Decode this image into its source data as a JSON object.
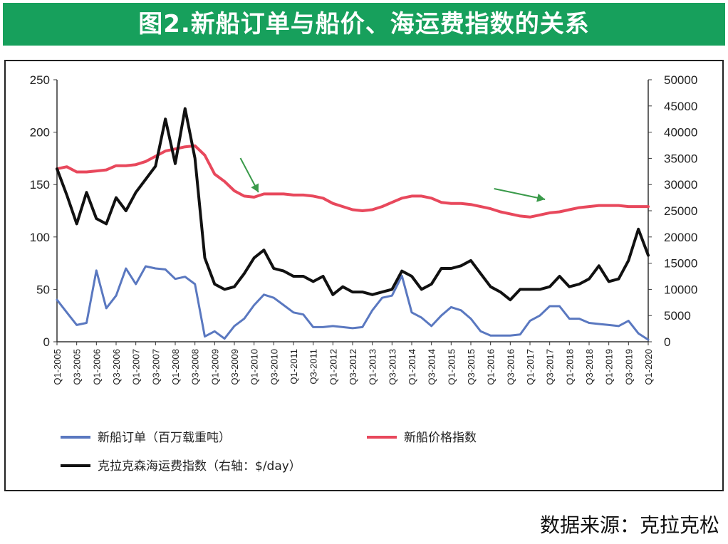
{
  "title": "图2.新船订单与船价、海运费指数的关系",
  "source": "数据来源：克拉克松",
  "chart_data": {
    "type": "line",
    "categories": [
      "Q1-2005",
      "Q2-2005",
      "Q3-2005",
      "Q4-2005",
      "Q1-2006",
      "Q2-2006",
      "Q3-2006",
      "Q4-2006",
      "Q1-2007",
      "Q2-2007",
      "Q3-2007",
      "Q4-2007",
      "Q1-2008",
      "Q2-2008",
      "Q3-2008",
      "Q4-2008",
      "Q1-2009",
      "Q2-2009",
      "Q3-2009",
      "Q4-2009",
      "Q1-2010",
      "Q2-2010",
      "Q3-2010",
      "Q4-2010",
      "Q1-2011",
      "Q2-2011",
      "Q3-2011",
      "Q4-2011",
      "Q1-2012",
      "Q2-2012",
      "Q3-2012",
      "Q4-2012",
      "Q1-2013",
      "Q2-2013",
      "Q3-2013",
      "Q4-2013",
      "Q1-2014",
      "Q2-2014",
      "Q3-2014",
      "Q4-2014",
      "Q1-2015",
      "Q2-2015",
      "Q3-2015",
      "Q4-2015",
      "Q1-2016",
      "Q2-2016",
      "Q3-2016",
      "Q4-2016",
      "Q1-2017",
      "Q2-2017",
      "Q3-2017",
      "Q4-2017",
      "Q1-2018",
      "Q2-2018",
      "Q3-2018",
      "Q4-2018",
      "Q1-2019",
      "Q2-2019",
      "Q3-2019",
      "Q4-2019",
      "Q1-2020"
    ],
    "tick_labels": [
      "Q1-2005",
      "Q3-2005",
      "Q1-2006",
      "Q3-2006",
      "Q1-2007",
      "Q3-2007",
      "Q1-2008",
      "Q3-2008",
      "Q1-2009",
      "Q3-2009",
      "Q1-2010",
      "Q3-2010",
      "Q1-2011",
      "Q3-2011",
      "Q1-2012",
      "Q3-2012",
      "Q1-2013",
      "Q3-2013",
      "Q1-2014",
      "Q3-2014",
      "Q1-2015",
      "Q3-2015",
      "Q1-2016",
      "Q3-2016",
      "Q1-2017",
      "Q3-2017",
      "Q1-2018",
      "Q3-2018",
      "Q1-2019",
      "Q3-2019",
      "Q1-2020"
    ],
    "y_left": {
      "range": [
        0,
        250
      ],
      "ticks": [
        "0",
        "50",
        "100",
        "150",
        "200",
        "250"
      ]
    },
    "y_right": {
      "range": [
        0,
        50000
      ],
      "ticks": [
        "0",
        "5000",
        "10000",
        "15000",
        "20000",
        "25000",
        "30000",
        "35000",
        "40000",
        "45000",
        "50000"
      ]
    },
    "series": [
      {
        "name": "新船订单（百万载重吨）",
        "axis": "left",
        "color": "#5a78c0",
        "values": [
          40,
          28,
          16,
          18,
          68,
          32,
          44,
          70,
          55,
          72,
          70,
          69,
          60,
          62,
          55,
          5,
          10,
          3,
          15,
          22,
          35,
          45,
          42,
          35,
          28,
          26,
          14,
          14,
          15,
          14,
          13,
          14,
          30,
          42,
          44,
          63,
          28,
          23,
          15,
          25,
          33,
          30,
          22,
          10,
          6,
          6,
          6,
          7,
          20,
          25,
          34,
          34,
          22,
          22,
          18,
          17,
          16,
          15,
          20,
          8,
          2
        ],
        "note": "values"
      },
      {
        "name": "新船价格指数",
        "axis": "left",
        "color": "#e8485c",
        "values": [
          165,
          167,
          162,
          162,
          163,
          164,
          168,
          168,
          169,
          172,
          177,
          182,
          184,
          186,
          187,
          178,
          160,
          153,
          144,
          139,
          138,
          141,
          141,
          141,
          140,
          140,
          139,
          137,
          132,
          129,
          126,
          125,
          126,
          129,
          133,
          137,
          139,
          139,
          137,
          133,
          132,
          132,
          131,
          129,
          127,
          124,
          122,
          120,
          119,
          121,
          123,
          124,
          126,
          128,
          129,
          130,
          130,
          130,
          129,
          129,
          129
        ]
      },
      {
        "name": "克拉克森海运费指数（右轴：$/day）",
        "axis": "right",
        "color": "#111111",
        "values": [
          33000,
          28000,
          22500,
          28500,
          23500,
          22500,
          27500,
          25000,
          28500,
          31000,
          33500,
          42500,
          34000,
          44500,
          35000,
          16000,
          11000,
          10000,
          10500,
          13000,
          16000,
          17500,
          14000,
          13500,
          12500,
          12500,
          11500,
          12500,
          9000,
          10500,
          9500,
          9500,
          9000,
          9500,
          10000,
          13500,
          12500,
          10000,
          11000,
          14000,
          14000,
          14500,
          15500,
          13000,
          10500,
          9500,
          8000,
          10000,
          10000,
          10000,
          10500,
          12500,
          10500,
          11000,
          12000,
          14500,
          11500,
          12000,
          15500,
          21500,
          16500
        ]
      }
    ],
    "legend": [
      {
        "label": "新船订单（百万载重吨）",
        "color": "#5a78c0"
      },
      {
        "label": "新船价格指数",
        "color": "#e8485c"
      },
      {
        "label": "克拉克森海运费指数（右轴：$/day）",
        "color": "#111111"
      }
    ],
    "legend_position": "bottom",
    "grid": false,
    "annotations": [
      {
        "type": "arrow",
        "color": "#3a9a4a",
        "from": "Q4-2008",
        "to": "Q4-2009"
      },
      {
        "type": "arrow",
        "color": "#3a9a4a",
        "from": "Q1-2016",
        "to": "Q4-2016"
      }
    ]
  }
}
